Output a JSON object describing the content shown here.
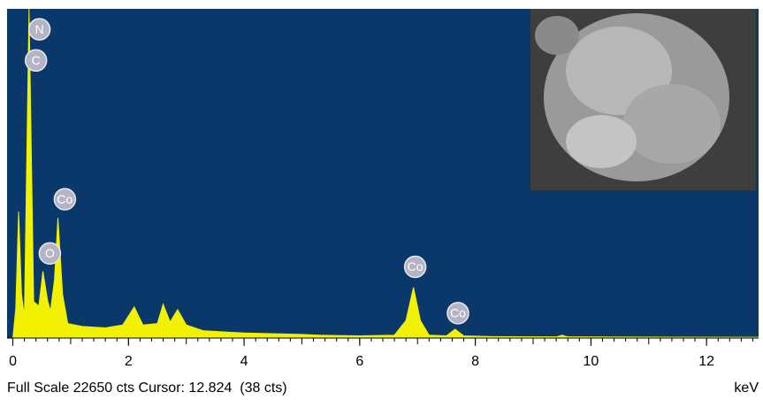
{
  "chart_data": {
    "type": "area",
    "x": [
      0,
      0.05,
      0.1,
      0.15,
      0.2,
      0.28,
      0.36,
      0.45,
      0.52,
      0.6,
      0.65,
      0.72,
      0.78,
      0.86,
      0.95,
      1.2,
      1.6,
      1.9,
      2.1,
      2.25,
      2.5,
      2.6,
      2.72,
      2.85,
      3.0,
      3.3,
      4.0,
      5.0,
      5.3,
      6.0,
      6.6,
      6.8,
      6.93,
      7.05,
      7.2,
      7.5,
      7.65,
      7.8,
      8.3,
      9.4,
      9.5,
      9.6,
      12.9
    ],
    "values": [
      0,
      2000,
      8700,
      3000,
      1500,
      22650,
      2500,
      2200,
      4590,
      2600,
      1840,
      4000,
      8260,
      3000,
      1000,
      800,
      700,
      900,
      2140,
      900,
      1000,
      2330,
      1100,
      1960,
      900,
      500,
      350,
      250,
      200,
      150,
      200,
      1200,
      3490,
      1200,
      200,
      150,
      610,
      150,
      100,
      80,
      200,
      80,
      50
    ],
    "color": "#f2f200",
    "background": "#0b386b",
    "xlim": [
      -0.1,
      12.9
    ],
    "ylim": [
      0,
      22650
    ],
    "xticks": [
      0,
      2,
      4,
      6,
      8,
      10,
      12
    ],
    "xlabel": "keV",
    "status": "Full Scale 22650 cts Cursor: 12.824  (38 cts)",
    "peak_labels": [
      {
        "text": "N",
        "x": 0.46,
        "y": 21240
      },
      {
        "text": "C",
        "x": 0.4,
        "y": 19100
      },
      {
        "text": "Co",
        "x": 0.9,
        "y": 9550
      },
      {
        "text": "O",
        "x": 0.64,
        "y": 5820
      },
      {
        "text": "Co",
        "x": 6.96,
        "y": 4900
      },
      {
        "text": "Co",
        "x": 7.7,
        "y": 1710
      }
    ]
  }
}
